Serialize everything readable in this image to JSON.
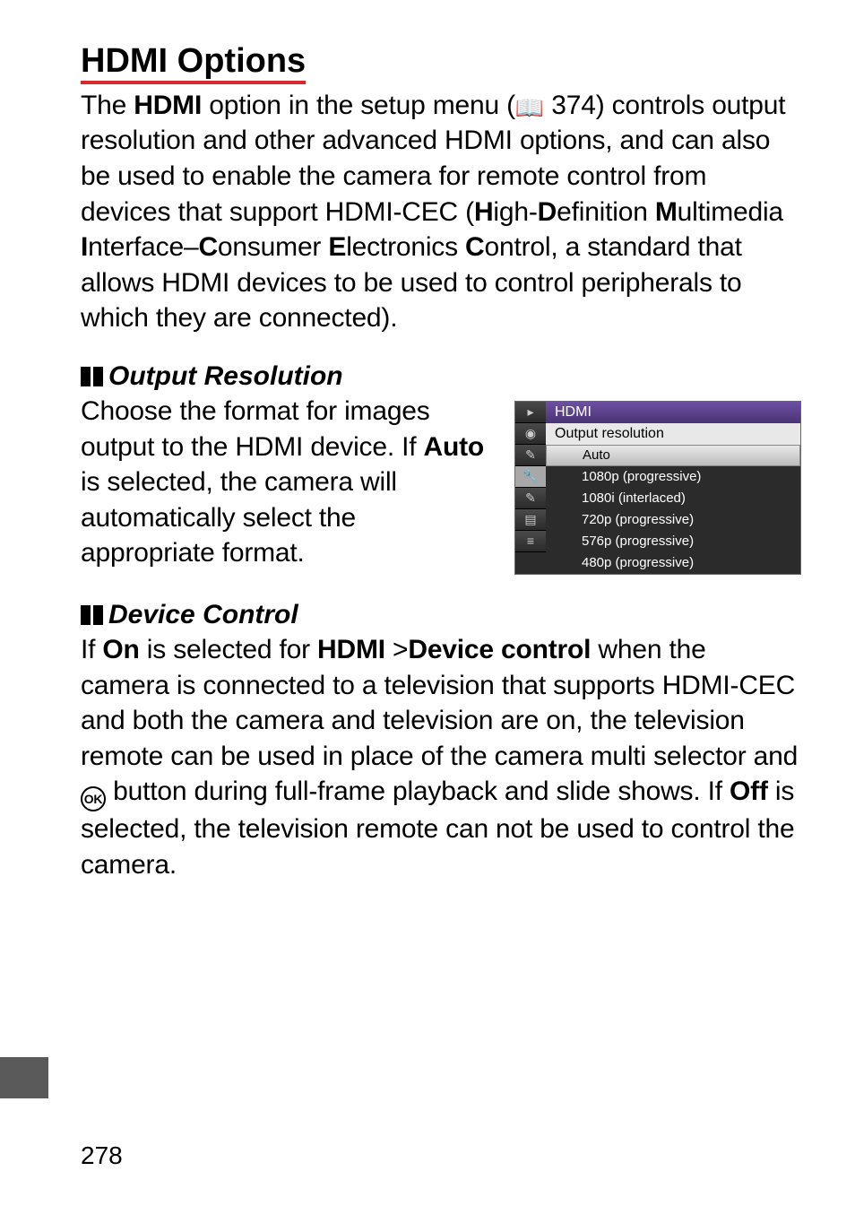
{
  "heading": "HDMI Options",
  "intro_parts": {
    "p1": "The ",
    "bold1": "HDMI",
    "p2": " option in the setup menu (",
    "page_ref": " 374) controls output resolution and other advanced HDMI options, and can also be used to enable the camera for remote control from devices that support HDMI-CEC (",
    "b_h": "H",
    "after_h": "igh-",
    "b_d": "D",
    "after_d": "efinition ",
    "b_m": "M",
    "after_m": "ultimedia ",
    "b_i": "I",
    "after_i": "nterface–",
    "b_c": "C",
    "after_c": "onsumer ",
    "b_e": "E",
    "after_e": "lectronics ",
    "b_c2": "C",
    "after_c2": "ontrol, a standard that allows HDMI devices to be used to control peripherals to which they are connected)."
  },
  "output_res": {
    "title": "Output Resolution",
    "text_p1": "Choose the format for images output to the HDMI device.  If ",
    "bold_auto": "Auto",
    "text_p2": " is selected, the camera will automatically select the appropriate format."
  },
  "menu": {
    "title": "HDMI",
    "subtitle": "Output resolution",
    "tabs": [
      "▸",
      "◉",
      "✎",
      "🔧",
      "✎",
      "▤",
      "≡"
    ],
    "items": [
      {
        "label": "Auto",
        "selected": true
      },
      {
        "label": "1080p (progressive)",
        "selected": false
      },
      {
        "label": "1080i  (interlaced)",
        "selected": false
      },
      {
        "label": "720p (progressive)",
        "selected": false
      },
      {
        "label": "576p (progressive)",
        "selected": false
      },
      {
        "label": "480p (progressive)",
        "selected": false
      }
    ]
  },
  "device_control": {
    "title": "Device Control",
    "p1": "If ",
    "b_on": "On",
    "p2": " is selected for ",
    "b_hdmi": "HDMI",
    "gt": " >",
    "b_dc": "Device control",
    "p3": " when the camera is connected to a television that supports HDMI-CEC and both the camera and television are on, the television remote can be used in place of the camera multi selector and ",
    "p4": " button during full-frame playback and slide shows.  If ",
    "b_off": "Off",
    "p5": " is selected, the television remote can not be used to control the camera."
  },
  "page_number": "278",
  "ok_label": "OK"
}
